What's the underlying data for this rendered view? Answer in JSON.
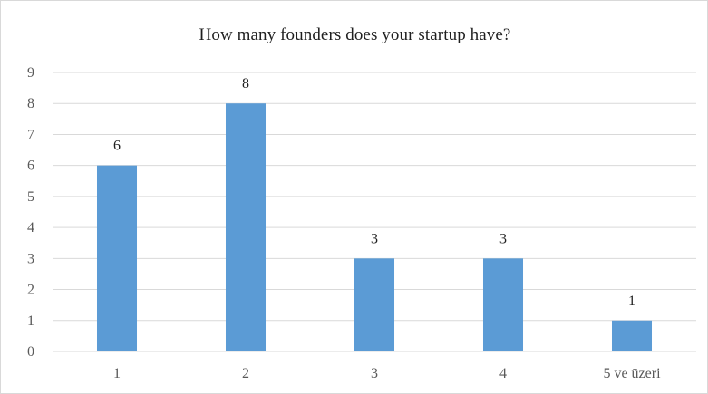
{
  "chart_data": {
    "type": "bar",
    "title": "How many founders does your startup have?",
    "categories": [
      "1",
      "2",
      "3",
      "4",
      "5 ve üzeri"
    ],
    "values": [
      6,
      8,
      3,
      3,
      1
    ],
    "xlabel": "",
    "ylabel": "",
    "ylim": [
      0,
      9
    ],
    "yticks": [
      0,
      1,
      2,
      3,
      4,
      5,
      6,
      7,
      8,
      9
    ],
    "grid": true,
    "legend": "none",
    "data_labels": true,
    "bar_color": "#5b9bd5",
    "grid_color": "#d9d9d9"
  }
}
